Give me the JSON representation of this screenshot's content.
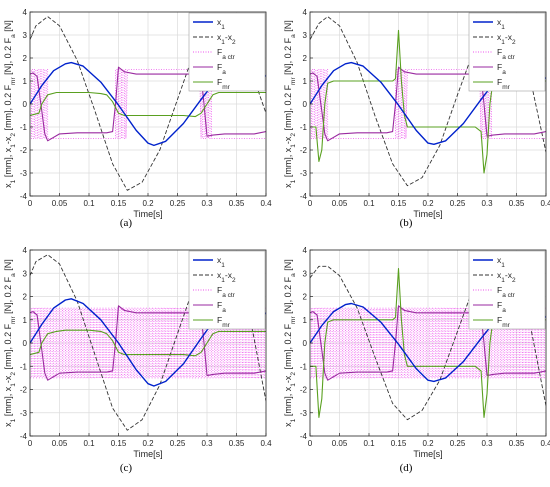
{
  "colors": {
    "x1": "#0022cc",
    "x1_x2": "#333333",
    "Fa_ctr": "#ee55ee",
    "Fa": "#9a2aa0",
    "Fmr": "#5aa020",
    "grid": "#dcdcdc",
    "axis": "#262626"
  },
  "figure_label_texts": [
    "(a)",
    "(b)",
    "(c)",
    "(d)"
  ],
  "chart_data": [
    {
      "type": "line",
      "panel": "(a)",
      "xlabel": "Time[s]",
      "ylabel": "x1 [mm], x1-x2 [mm], 0.2 Fmr [N], 0.2 Fa [N]",
      "xlim": [
        0,
        0.4
      ],
      "ylim": [
        -4,
        4
      ],
      "xticks": [
        "0",
        "0.05",
        "0.1",
        "0.15",
        "0.2",
        "0.25",
        "0.3",
        "0.35",
        "0.4"
      ],
      "yticks": [
        "-4",
        "-3",
        "-2",
        "-1",
        "0",
        "1",
        "2",
        "3",
        "4"
      ],
      "grid": true,
      "legend_position": "top-right",
      "legend": [
        "x1",
        "x1-x2",
        "Fa ctr",
        "Fa",
        "Fmr"
      ],
      "series": [
        {
          "name": "x1",
          "x": [
            0,
            0.02,
            0.04,
            0.06,
            0.07,
            0.09,
            0.12,
            0.15,
            0.18,
            0.2,
            0.21,
            0.23,
            0.26,
            0.29,
            0.32,
            0.35,
            0.38,
            0.4
          ],
          "y": [
            0,
            0.8,
            1.45,
            1.75,
            1.8,
            1.65,
            0.95,
            -0.05,
            -1.15,
            -1.7,
            -1.8,
            -1.62,
            -0.85,
            0.2,
            1.2,
            1.7,
            1.6,
            1.2
          ]
        },
        {
          "name": "x1-x2",
          "x": [
            0,
            0.01,
            0.03,
            0.05,
            0.08,
            0.11,
            0.14,
            0.165,
            0.19,
            0.22,
            0.25,
            0.28,
            0.31,
            0.34,
            0.37,
            0.4
          ],
          "y": [
            2.8,
            3.4,
            3.8,
            3.4,
            1.9,
            -0.3,
            -2.6,
            -3.75,
            -3.4,
            -2.0,
            0.2,
            2.4,
            3.7,
            3.5,
            1.8,
            -0.4
          ]
        },
        {
          "name": "Fa",
          "x": [
            0,
            0.005,
            0.012,
            0.02,
            0.025,
            0.03,
            0.05,
            0.08,
            0.11,
            0.13,
            0.14,
            0.145,
            0.15,
            0.16,
            0.18,
            0.2,
            0.23,
            0.26,
            0.28,
            0.29,
            0.295,
            0.3,
            0.31,
            0.33,
            0.36,
            0.38,
            0.4
          ],
          "y": [
            1.3,
            1.35,
            1.2,
            -0.3,
            -1.3,
            -1.6,
            -1.3,
            -1.25,
            -1.25,
            -1.25,
            -1.2,
            0,
            1.6,
            1.4,
            1.3,
            1.3,
            1.3,
            1.3,
            1.3,
            1.2,
            0,
            -1.4,
            -1.35,
            -1.3,
            -1.3,
            -1.3,
            -1.2
          ]
        },
        {
          "name": "Fmr",
          "x": [
            0,
            0.015,
            0.02,
            0.03,
            0.045,
            0.06,
            0.08,
            0.1,
            0.12,
            0.13,
            0.14,
            0.15,
            0.16,
            0.18,
            0.2,
            0.23,
            0.26,
            0.28,
            0.29,
            0.3,
            0.31,
            0.32,
            0.35,
            0.38,
            0.4
          ],
          "y": [
            -0.5,
            -0.4,
            0,
            0.4,
            0.5,
            0.5,
            0.5,
            0.5,
            0.45,
            0.4,
            0.1,
            -0.4,
            -0.5,
            -0.5,
            -0.5,
            -0.5,
            -0.5,
            -0.55,
            -0.4,
            0,
            0.4,
            0.5,
            0.5,
            0.5,
            0.5
          ]
        }
      ],
      "fa_ctr": {
        "amplitude": 1.5,
        "period": 0.005,
        "on": [
          [
            0.0,
            0.03
          ],
          [
            0.145,
            0.165
          ],
          [
            0.29,
            0.31
          ]
        ],
        "envelope_x": [
          0,
          0.02,
          0.03,
          0.145,
          0.15,
          0.165,
          0.29,
          0.3,
          0.31,
          0.4
        ],
        "envelope_y": [
          1.5,
          1.5,
          -1.5,
          -1.5,
          1.5,
          1.5,
          1.5,
          -1.5,
          -1.5,
          -1.5
        ]
      }
    },
    {
      "type": "line",
      "panel": "(b)",
      "xlabel": "Time[s]",
      "ylabel": "x1 [mm], x1-x2 [mm], 0.2 Fmr [N], 0.2 Fa [N]",
      "xlim": [
        0,
        0.4
      ],
      "ylim": [
        -4,
        4
      ],
      "xticks": [
        "0",
        "0.05",
        "0.1",
        "0.15",
        "0.2",
        "0.25",
        "0.3",
        "0.35",
        "0.4"
      ],
      "yticks": [
        "-4",
        "-3",
        "-2",
        "-1",
        "0",
        "1",
        "2",
        "3",
        "4"
      ],
      "grid": true,
      "legend_position": "top-right",
      "legend": [
        "x1",
        "x1-x2",
        "Fa ctr",
        "Fa",
        "Fmr"
      ],
      "series": [
        {
          "name": "x1",
          "x": [
            0,
            0.02,
            0.04,
            0.06,
            0.07,
            0.09,
            0.12,
            0.15,
            0.18,
            0.2,
            0.21,
            0.23,
            0.26,
            0.29,
            0.32,
            0.35,
            0.38,
            0.4
          ],
          "y": [
            0,
            0.8,
            1.45,
            1.75,
            1.8,
            1.65,
            0.95,
            -0.05,
            -1.15,
            -1.7,
            -1.75,
            -1.6,
            -0.85,
            0.2,
            1.2,
            1.65,
            1.55,
            1.1
          ]
        },
        {
          "name": "x1-x2",
          "x": [
            0,
            0.015,
            0.03,
            0.05,
            0.08,
            0.11,
            0.14,
            0.165,
            0.19,
            0.22,
            0.25,
            0.28,
            0.31,
            0.34,
            0.37,
            0.4
          ],
          "y": [
            2.8,
            3.5,
            3.8,
            3.4,
            1.8,
            -0.5,
            -2.6,
            -3.55,
            -3.2,
            -1.8,
            0.4,
            2.5,
            3.5,
            3.3,
            1.5,
            -2.1
          ]
        },
        {
          "name": "Fa",
          "x": [
            0,
            0.005,
            0.012,
            0.02,
            0.025,
            0.03,
            0.05,
            0.08,
            0.11,
            0.13,
            0.14,
            0.145,
            0.15,
            0.16,
            0.18,
            0.2,
            0.23,
            0.26,
            0.28,
            0.29,
            0.295,
            0.3,
            0.31,
            0.33,
            0.36,
            0.38,
            0.4
          ],
          "y": [
            1.3,
            1.35,
            1.2,
            -0.3,
            -1.3,
            -1.6,
            -1.3,
            -1.25,
            -1.25,
            -1.25,
            -1.2,
            0,
            1.6,
            1.4,
            1.3,
            1.3,
            1.3,
            1.3,
            1.3,
            1.2,
            0,
            -1.4,
            -1.35,
            -1.3,
            -1.3,
            -1.3,
            -1.2
          ]
        },
        {
          "name": "Fmr",
          "x": [
            0,
            0.01,
            0.015,
            0.02,
            0.025,
            0.03,
            0.04,
            0.06,
            0.09,
            0.12,
            0.14,
            0.145,
            0.15,
            0.155,
            0.16,
            0.165,
            0.17,
            0.2,
            0.23,
            0.26,
            0.28,
            0.29,
            0.295,
            0.3,
            0.305,
            0.31,
            0.33,
            0.36,
            0.4
          ],
          "y": [
            -1.0,
            -1.0,
            -2.5,
            -2.0,
            0,
            0.9,
            1.0,
            1.0,
            1.0,
            1.0,
            1.0,
            1.1,
            3.2,
            1.0,
            -0.5,
            -1.0,
            -1.0,
            -1.0,
            -1.0,
            -1.0,
            -1.0,
            -1.2,
            -3.0,
            -2.2,
            0,
            0.95,
            1.0,
            1.0,
            1.0
          ]
        }
      ],
      "fa_ctr": {
        "amplitude": 1.5,
        "period": 0.005,
        "on": [
          [
            0.0,
            0.03
          ],
          [
            0.145,
            0.165
          ],
          [
            0.29,
            0.31
          ]
        ],
        "envelope_x": [
          0,
          0.02,
          0.03,
          0.145,
          0.15,
          0.165,
          0.29,
          0.3,
          0.31,
          0.4
        ],
        "envelope_y": [
          1.5,
          1.5,
          -1.5,
          -1.5,
          1.5,
          1.5,
          1.5,
          -1.5,
          -1.5,
          -1.5
        ]
      }
    },
    {
      "type": "line",
      "panel": "(c)",
      "xlabel": "Time[s]",
      "ylabel": "x1 [mm], x1-x2 [mm], 0.2 Fmr [N], 0.2 Fa [N]",
      "xlim": [
        0,
        0.4
      ],
      "ylim": [
        -4,
        4
      ],
      "xticks": [
        "0",
        "0.05",
        "0.1",
        "0.15",
        "0.2",
        "0.25",
        "0.3",
        "0.35",
        "0.4"
      ],
      "yticks": [
        "-4",
        "-3",
        "-2",
        "-1",
        "0",
        "1",
        "2",
        "3",
        "4"
      ],
      "grid": true,
      "legend_position": "top-right",
      "legend": [
        "x1",
        "x1-x2",
        "Fa ctr",
        "Fa",
        "Fmr"
      ],
      "series": [
        {
          "name": "x1",
          "x": [
            0,
            0.02,
            0.04,
            0.06,
            0.07,
            0.09,
            0.12,
            0.15,
            0.18,
            0.2,
            0.21,
            0.23,
            0.26,
            0.29,
            0.32,
            0.35,
            0.38,
            0.4
          ],
          "y": [
            0,
            0.8,
            1.5,
            1.85,
            1.9,
            1.7,
            1.0,
            0,
            -1.15,
            -1.75,
            -1.85,
            -1.65,
            -0.9,
            0.2,
            1.25,
            1.75,
            1.65,
            1.25
          ]
        },
        {
          "name": "x1-x2",
          "x": [
            0,
            0.01,
            0.03,
            0.05,
            0.08,
            0.11,
            0.14,
            0.165,
            0.19,
            0.22,
            0.25,
            0.28,
            0.31,
            0.34,
            0.37,
            0.4
          ],
          "y": [
            2.9,
            3.5,
            3.8,
            3.4,
            1.8,
            -0.5,
            -2.8,
            -3.75,
            -3.3,
            -1.8,
            0.4,
            2.6,
            3.75,
            3.5,
            1.5,
            -2.5
          ]
        },
        {
          "name": "Fa",
          "x": [
            0,
            0.005,
            0.012,
            0.02,
            0.025,
            0.03,
            0.05,
            0.08,
            0.11,
            0.13,
            0.14,
            0.145,
            0.15,
            0.16,
            0.18,
            0.2,
            0.23,
            0.26,
            0.28,
            0.29,
            0.295,
            0.3,
            0.31,
            0.33,
            0.36,
            0.38,
            0.4
          ],
          "y": [
            1.3,
            1.35,
            1.2,
            -0.3,
            -1.3,
            -1.6,
            -1.3,
            -1.25,
            -1.25,
            -1.25,
            -1.2,
            0,
            1.6,
            1.4,
            1.3,
            1.3,
            1.3,
            1.3,
            1.3,
            1.2,
            0,
            -1.4,
            -1.35,
            -1.3,
            -1.3,
            -1.3,
            -1.2
          ]
        },
        {
          "name": "Fmr",
          "x": [
            0,
            0.015,
            0.02,
            0.03,
            0.045,
            0.06,
            0.08,
            0.1,
            0.12,
            0.13,
            0.14,
            0.15,
            0.16,
            0.18,
            0.2,
            0.23,
            0.26,
            0.28,
            0.29,
            0.3,
            0.31,
            0.32,
            0.35,
            0.38,
            0.4
          ],
          "y": [
            -0.5,
            -0.4,
            0,
            0.4,
            0.5,
            0.55,
            0.55,
            0.55,
            0.5,
            0.4,
            0.1,
            -0.4,
            -0.5,
            -0.5,
            -0.5,
            -0.5,
            -0.5,
            -0.55,
            -0.4,
            0,
            0.4,
            0.5,
            0.5,
            0.5,
            0.5
          ]
        }
      ],
      "fa_ctr": {
        "amplitude": 1.5,
        "period": 0.005,
        "on": [
          [
            0.0,
            0.4
          ]
        ],
        "envelope_x": [
          0,
          0.4
        ],
        "envelope_y": [
          1.5,
          1.5
        ]
      }
    },
    {
      "type": "line",
      "panel": "(d)",
      "xlabel": "Time[s]",
      "ylabel": "x1 [mm], x1-x2 [mm], 0.2 Fmr [N], 0.2 Fa [N]",
      "xlim": [
        0,
        0.4
      ],
      "ylim": [
        -4,
        4
      ],
      "xticks": [
        "0",
        "0.05",
        "0.1",
        "0.15",
        "0.2",
        "0.25",
        "0.3",
        "0.35",
        "0.4"
      ],
      "yticks": [
        "-4",
        "-3",
        "-2",
        "-1",
        "0",
        "1",
        "2",
        "3",
        "4"
      ],
      "grid": true,
      "legend_position": "top-right",
      "legend": [
        "x1",
        "x1-x2",
        "Fa ctr",
        "Fa",
        "Fmr"
      ],
      "series": [
        {
          "name": "x1",
          "x": [
            0,
            0.02,
            0.04,
            0.06,
            0.07,
            0.09,
            0.12,
            0.15,
            0.18,
            0.2,
            0.21,
            0.23,
            0.26,
            0.29,
            0.32,
            0.35,
            0.38,
            0.4
          ],
          "y": [
            0,
            0.75,
            1.35,
            1.65,
            1.7,
            1.55,
            0.9,
            -0.05,
            -1.1,
            -1.6,
            -1.65,
            -1.5,
            -0.8,
            0.2,
            1.15,
            1.6,
            1.5,
            1.1
          ]
        },
        {
          "name": "x1-x2",
          "x": [
            0,
            0.015,
            0.03,
            0.05,
            0.08,
            0.11,
            0.14,
            0.165,
            0.19,
            0.22,
            0.25,
            0.28,
            0.31,
            0.34,
            0.37,
            0.4
          ],
          "y": [
            2.8,
            3.3,
            3.3,
            2.9,
            1.5,
            -0.6,
            -2.6,
            -3.3,
            -2.9,
            -1.6,
            0.5,
            2.6,
            3.5,
            3.2,
            1.2,
            -2.7
          ]
        },
        {
          "name": "Fa",
          "x": [
            0,
            0.005,
            0.012,
            0.02,
            0.025,
            0.03,
            0.05,
            0.08,
            0.11,
            0.13,
            0.14,
            0.145,
            0.15,
            0.16,
            0.18,
            0.2,
            0.23,
            0.26,
            0.28,
            0.29,
            0.295,
            0.3,
            0.31,
            0.33,
            0.36,
            0.38,
            0.4
          ],
          "y": [
            1.3,
            1.35,
            1.2,
            -0.3,
            -1.3,
            -1.6,
            -1.3,
            -1.25,
            -1.25,
            -1.25,
            -1.2,
            0,
            1.6,
            1.4,
            1.3,
            1.3,
            1.3,
            1.3,
            1.3,
            1.2,
            0,
            -1.4,
            -1.35,
            -1.3,
            -1.3,
            -1.3,
            -1.2
          ]
        },
        {
          "name": "Fmr",
          "x": [
            0,
            0.01,
            0.015,
            0.02,
            0.025,
            0.03,
            0.04,
            0.06,
            0.09,
            0.12,
            0.14,
            0.145,
            0.15,
            0.155,
            0.16,
            0.165,
            0.17,
            0.2,
            0.23,
            0.26,
            0.28,
            0.29,
            0.295,
            0.3,
            0.305,
            0.31,
            0.33,
            0.36,
            0.4
          ],
          "y": [
            -1.0,
            -1.0,
            -3.2,
            -2.4,
            0,
            0.9,
            1.0,
            1.0,
            1.0,
            1.0,
            1.0,
            1.1,
            3.2,
            1.0,
            -0.5,
            -1.0,
            -1.0,
            -1.0,
            -1.0,
            -1.0,
            -1.0,
            -1.2,
            -3.2,
            -2.2,
            0,
            0.95,
            1.0,
            1.0,
            1.0
          ]
        }
      ],
      "fa_ctr": {
        "amplitude": 1.5,
        "period": 0.005,
        "on": [
          [
            0.0,
            0.4
          ]
        ],
        "envelope_x": [
          0,
          0.4
        ],
        "envelope_y": [
          1.5,
          1.5
        ]
      }
    }
  ]
}
